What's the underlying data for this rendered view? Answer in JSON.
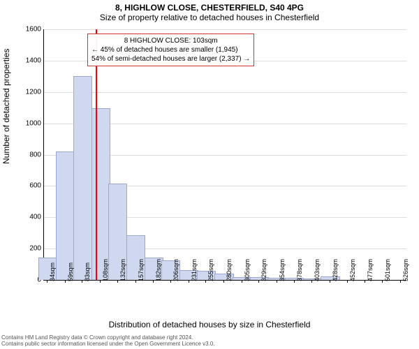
{
  "title_line1": "8, HIGHLOW CLOSE, CHESTERFIELD, S40 4PG",
  "title_line2": "Size of property relative to detached houses in Chesterfield",
  "y_axis_label": "Number of detached properties",
  "x_axis_label": "Distribution of detached houses by size in Chesterfield",
  "footer_line1": "Contains HM Land Registry data © Crown copyright and database right 2024.",
  "footer_line2": "Contains public sector information licensed under the Open Government Licence v3.0.",
  "chart": {
    "type": "histogram",
    "background_color": "#ffffff",
    "grid_color": "#dddddd",
    "axis_color": "#000000",
    "bar_fill": "#cfd8ef",
    "bar_stroke": "#9aa8d0",
    "marker_color": "#ff0000",
    "marker_x_sqm": 103,
    "yticks": [
      0,
      200,
      400,
      600,
      800,
      1000,
      1200,
      1400,
      1600
    ],
    "ymax": 1600,
    "xmin_sqm": 30,
    "xmax_sqm": 535,
    "xtick_labels": [
      "34sqm",
      "59sqm",
      "83sqm",
      "108sqm",
      "132sqm",
      "157sqm",
      "182sqm",
      "206sqm",
      "231sqm",
      "255sqm",
      "280sqm",
      "305sqm",
      "329sqm",
      "354sqm",
      "378sqm",
      "403sqm",
      "428sqm",
      "452sqm",
      "477sqm",
      "501sqm",
      "526sqm"
    ],
    "bars": [
      {
        "x_sqm": 34,
        "value": 140
      },
      {
        "x_sqm": 59,
        "value": 815
      },
      {
        "x_sqm": 83,
        "value": 1295
      },
      {
        "x_sqm": 108,
        "value": 1090
      },
      {
        "x_sqm": 132,
        "value": 610
      },
      {
        "x_sqm": 157,
        "value": 280
      },
      {
        "x_sqm": 182,
        "value": 140
      },
      {
        "x_sqm": 206,
        "value": 120
      },
      {
        "x_sqm": 231,
        "value": 60
      },
      {
        "x_sqm": 255,
        "value": 55
      },
      {
        "x_sqm": 280,
        "value": 35
      },
      {
        "x_sqm": 305,
        "value": 15
      },
      {
        "x_sqm": 329,
        "value": 15
      },
      {
        "x_sqm": 354,
        "value": 8
      },
      {
        "x_sqm": 378,
        "value": 8
      },
      {
        "x_sqm": 403,
        "value": 6
      },
      {
        "x_sqm": 428,
        "value": 18
      },
      {
        "x_sqm": 452,
        "value": 0
      },
      {
        "x_sqm": 477,
        "value": 0
      },
      {
        "x_sqm": 501,
        "value": 0
      },
      {
        "x_sqm": 526,
        "value": 0
      }
    ],
    "bar_width_sqm": 24.5,
    "title_fontsize": 12,
    "label_fontsize": 12,
    "tick_fontsize": 10
  },
  "annotation": {
    "line1": "8 HIGHLOW CLOSE: 103sqm",
    "line2": "← 45% of detached houses are smaller (1,945)",
    "line3": "54% of semi-detached houses are larger (2,337) →",
    "border_color": "#d33333",
    "bg_color": "#ffffff",
    "fontsize": 10
  }
}
